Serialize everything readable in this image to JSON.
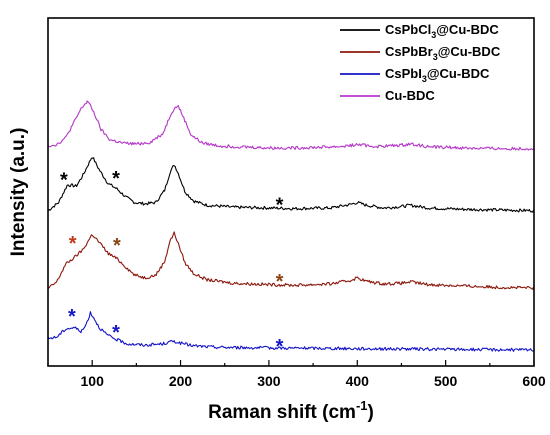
{
  "chart_data": {
    "type": "line",
    "xlabel_main": "Raman shift (cm",
    "xlabel_sup": "-1",
    "xlabel_end": ")",
    "ylabel": "Intensity (a.u.)",
    "xlim": [
      50,
      600
    ],
    "xticks": [
      "100",
      "200",
      "300",
      "400",
      "500",
      "600"
    ],
    "yticks": false,
    "legend": "top-right",
    "series": [
      {
        "name_parts": [
          "CsPbCl",
          "3",
          "@Cu-BDC"
        ],
        "color": "#000000",
        "offset": 2,
        "points": [
          [
            50,
            0.02
          ],
          [
            62,
            0.14
          ],
          [
            72,
            0.4
          ],
          [
            82,
            0.38
          ],
          [
            90,
            0.55
          ],
          [
            100,
            0.82
          ],
          [
            108,
            0.62
          ],
          [
            118,
            0.42
          ],
          [
            128,
            0.34
          ],
          [
            138,
            0.22
          ],
          [
            148,
            0.14
          ],
          [
            160,
            0.12
          ],
          [
            172,
            0.14
          ],
          [
            182,
            0.32
          ],
          [
            188,
            0.58
          ],
          [
            193,
            0.7
          ],
          [
            198,
            0.55
          ],
          [
            205,
            0.3
          ],
          [
            215,
            0.16
          ],
          [
            230,
            0.1
          ],
          [
            260,
            0.07
          ],
          [
            300,
            0.06
          ],
          [
            330,
            0.05
          ],
          [
            370,
            0.06
          ],
          [
            392,
            0.11
          ],
          [
            400,
            0.14
          ],
          [
            410,
            0.1
          ],
          [
            430,
            0.06
          ],
          [
            450,
            0.08
          ],
          [
            460,
            0.1
          ],
          [
            480,
            0.06
          ],
          [
            520,
            0.04
          ],
          [
            560,
            0.03
          ],
          [
            600,
            0.02
          ]
        ]
      },
      {
        "name_parts": [
          "CsPbBr",
          "3",
          "@Cu-BDC"
        ],
        "color": "#8b1a0e",
        "offset": 1,
        "points": [
          [
            50,
            0.02
          ],
          [
            60,
            0.12
          ],
          [
            70,
            0.38
          ],
          [
            80,
            0.48
          ],
          [
            90,
            0.6
          ],
          [
            100,
            0.82
          ],
          [
            108,
            0.7
          ],
          [
            118,
            0.54
          ],
          [
            128,
            0.46
          ],
          [
            138,
            0.34
          ],
          [
            148,
            0.22
          ],
          [
            160,
            0.18
          ],
          [
            172,
            0.22
          ],
          [
            182,
            0.42
          ],
          [
            188,
            0.72
          ],
          [
            193,
            0.84
          ],
          [
            198,
            0.66
          ],
          [
            205,
            0.4
          ],
          [
            215,
            0.24
          ],
          [
            230,
            0.15
          ],
          [
            260,
            0.1
          ],
          [
            300,
            0.08
          ],
          [
            330,
            0.07
          ],
          [
            370,
            0.09
          ],
          [
            392,
            0.14
          ],
          [
            400,
            0.18
          ],
          [
            410,
            0.13
          ],
          [
            430,
            0.09
          ],
          [
            450,
            0.1
          ],
          [
            460,
            0.12
          ],
          [
            480,
            0.08
          ],
          [
            520,
            0.06
          ],
          [
            560,
            0.04
          ],
          [
            600,
            0.03
          ]
        ]
      },
      {
        "name_parts": [
          "CsPbI",
          "3",
          "@Cu-BDC"
        ],
        "color": "#1414c8",
        "offset": 0,
        "points": [
          [
            50,
            0.2
          ],
          [
            60,
            0.22
          ],
          [
            70,
            0.34
          ],
          [
            80,
            0.36
          ],
          [
            88,
            0.3
          ],
          [
            93,
            0.4
          ],
          [
            98,
            0.58
          ],
          [
            102,
            0.5
          ],
          [
            108,
            0.36
          ],
          [
            118,
            0.24
          ],
          [
            128,
            0.18
          ],
          [
            140,
            0.12
          ],
          [
            160,
            0.1
          ],
          [
            180,
            0.12
          ],
          [
            192,
            0.16
          ],
          [
            200,
            0.13
          ],
          [
            215,
            0.09
          ],
          [
            240,
            0.07
          ],
          [
            300,
            0.06
          ],
          [
            400,
            0.05
          ],
          [
            500,
            0.04
          ],
          [
            600,
            0.03
          ]
        ]
      },
      {
        "name_parts": [
          "Cu-BDC",
          "",
          ""
        ],
        "color": "#b53ac9",
        "offset": 3,
        "points": [
          [
            50,
            0.06
          ],
          [
            60,
            0.08
          ],
          [
            70,
            0.18
          ],
          [
            80,
            0.42
          ],
          [
            88,
            0.62
          ],
          [
            95,
            0.72
          ],
          [
            102,
            0.55
          ],
          [
            110,
            0.3
          ],
          [
            120,
            0.15
          ],
          [
            135,
            0.1
          ],
          [
            150,
            0.09
          ],
          [
            165,
            0.11
          ],
          [
            180,
            0.24
          ],
          [
            190,
            0.56
          ],
          [
            197,
            0.66
          ],
          [
            204,
            0.46
          ],
          [
            212,
            0.22
          ],
          [
            225,
            0.1
          ],
          [
            245,
            0.06
          ],
          [
            300,
            0.03
          ],
          [
            330,
            0.03
          ],
          [
            380,
            0.05
          ],
          [
            395,
            0.07
          ],
          [
            402,
            0.08
          ],
          [
            420,
            0.05
          ],
          [
            450,
            0.07
          ],
          [
            460,
            0.09
          ],
          [
            480,
            0.05
          ],
          [
            520,
            0.03
          ],
          [
            560,
            0.02
          ],
          [
            600,
            0.02
          ]
        ]
      }
    ],
    "markers": [
      {
        "symbol": "*",
        "x": 68,
        "series": 0,
        "lift": 0.52,
        "color": "#000000"
      },
      {
        "symbol": "*",
        "x": 127,
        "series": 0,
        "lift": 0.44,
        "color": "#000000"
      },
      {
        "symbol": "*",
        "x": 312,
        "series": 0,
        "lift": 0.22,
        "color": "#000000"
      },
      {
        "symbol": "*",
        "x": 78,
        "series": 1,
        "lift": 0.62,
        "color": "#c0391b"
      },
      {
        "symbol": "*",
        "x": 128,
        "series": 1,
        "lift": 0.56,
        "color": "#8b4513"
      },
      {
        "symbol": "*",
        "x": 312,
        "series": 1,
        "lift": 0.22,
        "color": "#8b4513"
      },
      {
        "symbol": "*",
        "x": 77,
        "series": 2,
        "lift": 0.5,
        "color": "#1414c8"
      },
      {
        "symbol": "*",
        "x": 127,
        "series": 2,
        "lift": 0.34,
        "color": "#1414c8"
      },
      {
        "symbol": "*",
        "x": 312,
        "series": 2,
        "lift": 0.16,
        "color": "#1414c8"
      }
    ]
  }
}
